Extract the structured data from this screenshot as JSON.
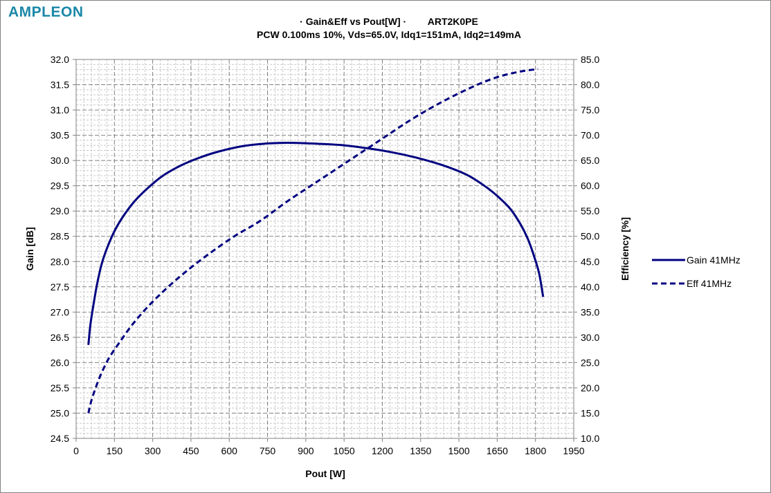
{
  "brand": {
    "logo_text": "AMPLEON",
    "logo_color": "#1b88a8"
  },
  "colors": {
    "series": "#000080",
    "grid_major": "#808080",
    "grid_minor": "#c8c8c8"
  },
  "chart_data": {
    "type": "line",
    "title": "· Gain&Eff vs Pout[W] ·        ART2K0PE",
    "subtitle": "PCW 0.100ms 10%, Vds=65.0V, Idq1=151mA, Idq2=149mA",
    "xlabel": "Pout [W]",
    "ylabel": "Gain [dB]",
    "y2label": "Efficiency [%]",
    "xlim": [
      0,
      1950
    ],
    "ylim": [
      24.5,
      32.0
    ],
    "y2lim": [
      10.0,
      85.0
    ],
    "x_ticks": [
      "0",
      "150",
      "300",
      "450",
      "600",
      "750",
      "900",
      "1050",
      "1200",
      "1350",
      "1500",
      "1650",
      "1800",
      "1950"
    ],
    "y_ticks": [
      "24.5",
      "25.0",
      "25.5",
      "26.0",
      "26.5",
      "27.0",
      "27.5",
      "28.0",
      "28.5",
      "29.0",
      "29.5",
      "30.0",
      "30.5",
      "31.0",
      "31.5",
      "32.0"
    ],
    "y2_ticks": [
      "10.0",
      "15.0",
      "20.0",
      "25.0",
      "30.0",
      "35.0",
      "40.0",
      "45.0",
      "50.0",
      "55.0",
      "60.0",
      "65.0",
      "70.0",
      "75.0",
      "80.0",
      "85.0"
    ],
    "grid": true,
    "legend_position": "right",
    "series": [
      {
        "name": "Gain 41MHz",
        "axis": "left",
        "style": "solid",
        "x": [
          48,
          56,
          68,
          82,
          100,
          120,
          150,
          185,
          230,
          280,
          340,
          410,
          480,
          560,
          660,
          760,
          850,
          950,
          1050,
          1130,
          1230,
          1330,
          1440,
          1530,
          1600,
          1650,
          1700,
          1740,
          1770,
          1795,
          1815,
          1830
        ],
        "y": [
          26.35,
          26.75,
          27.15,
          27.55,
          27.95,
          28.25,
          28.6,
          28.9,
          29.2,
          29.45,
          29.7,
          29.9,
          30.05,
          30.18,
          30.29,
          30.34,
          30.35,
          30.33,
          30.3,
          30.25,
          30.17,
          30.06,
          29.9,
          29.72,
          29.5,
          29.3,
          29.05,
          28.75,
          28.45,
          28.1,
          27.75,
          27.3
        ]
      },
      {
        "name": "Eff 41MHz",
        "axis": "right",
        "style": "dashed",
        "x": [
          48,
          60,
          80,
          100,
          130,
          170,
          220,
          280,
          350,
          430,
          520,
          620,
          720,
          830,
          950,
          1070,
          1190,
          1310,
          1430,
          1550,
          1650,
          1740,
          1810
        ],
        "y": [
          15.0,
          17.5,
          20.5,
          23.0,
          26.0,
          29.0,
          32.5,
          36.0,
          39.5,
          43.0,
          46.5,
          50.0,
          53.0,
          57.0,
          61.0,
          65.0,
          69.0,
          73.0,
          76.5,
          79.5,
          81.5,
          82.6,
          83.1
        ]
      }
    ]
  }
}
